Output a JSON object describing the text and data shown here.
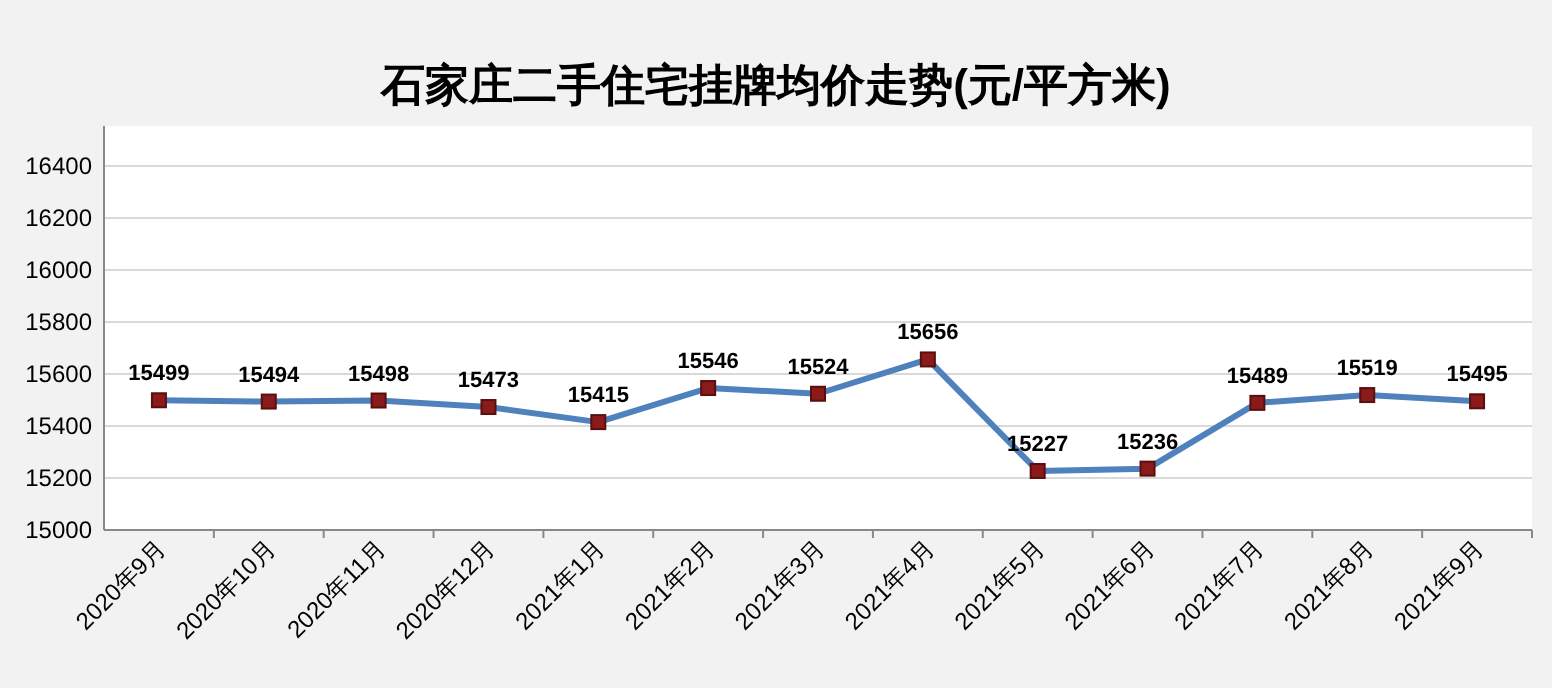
{
  "chart_data": {
    "type": "line",
    "title": "石家庄二手住宅挂牌均价走势(元/平方米)",
    "categories": [
      "2020年9月",
      "2020年10月",
      "2020年11月",
      "2020年12月",
      "2021年1月",
      "2021年2月",
      "2021年3月",
      "2021年4月",
      "2021年5月",
      "2021年6月",
      "2021年7月",
      "2021年8月",
      "2021年9月"
    ],
    "series": [
      {
        "color": "#4f81bd",
        "values": [
          15499,
          15494,
          15498,
          15473,
          15415,
          15546,
          15524,
          15656,
          15227,
          15236,
          15489,
          15519,
          15495
        ]
      }
    ],
    "ylim": [
      15000,
      16400
    ],
    "yticks": [
      15000,
      15200,
      15400,
      15600,
      15800,
      16000,
      16200,
      16400
    ],
    "grid": "y",
    "marker": "square",
    "data_labels": true
  }
}
